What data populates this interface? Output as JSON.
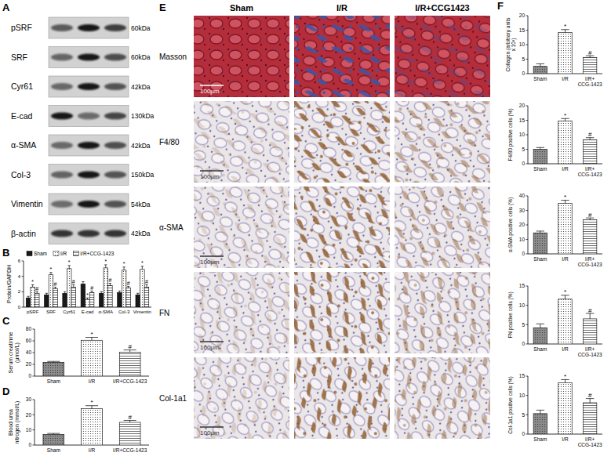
{
  "figure": {
    "panel_letters": [
      "A",
      "B",
      "C",
      "D",
      "E",
      "F"
    ],
    "blot": {
      "rows": [
        {
          "label": "pSRF",
          "size": "60kDa"
        },
        {
          "label": "SRF",
          "size": "60kDa"
        },
        {
          "label": "Cyr61",
          "size": "42kDa"
        },
        {
          "label": "E-cad",
          "size": "130kDa"
        },
        {
          "label": "α-SMA",
          "size": "42kDa"
        },
        {
          "label": "Col-3",
          "size": "150kDa"
        },
        {
          "label": "Vimentin",
          "size": "54kDa"
        },
        {
          "label": "β-actin",
          "size": "42kDa"
        }
      ]
    },
    "images": {
      "columns": [
        "Sham",
        "I/R",
        "I/R+CCG1423"
      ],
      "rows": [
        {
          "label": "Masson",
          "scale_bar": "100μm"
        },
        {
          "label": "F4/80",
          "scale_bar": "100μm"
        },
        {
          "label": "α-SMA",
          "scale_bar": "100μm"
        },
        {
          "label": "FN",
          "scale_bar": "100μm"
        },
        {
          "label": "Col-1a1",
          "scale_bar": "100μm"
        }
      ]
    }
  },
  "chart_data": [
    {
      "type": "bar",
      "y_label": "Protein/GAPDH",
      "categories": [
        "pSRF",
        "SRF",
        "Cyr61",
        "E-cad",
        "α-SMA",
        "Col-3",
        "Vimentin"
      ],
      "series": [
        {
          "name": "Sham",
          "color": "#1a1a1a",
          "values": [
            1.2,
            1.6,
            1.8,
            3.0,
            1.8,
            1.9,
            1.6
          ],
          "errors": [
            0.2,
            0.2,
            0.2,
            0.3,
            0.2,
            0.2,
            0.2
          ],
          "annotations": [
            null,
            null,
            null,
            null,
            null,
            null,
            null
          ]
        },
        {
          "name": "I/R",
          "color": "#ffffff",
          "values": [
            2.6,
            4.2,
            5.0,
            1.0,
            5.1,
            4.8,
            4.9
          ],
          "errors": [
            0.3,
            0.3,
            0.4,
            0.2,
            0.4,
            0.4,
            0.4
          ],
          "annotations": [
            "*",
            "*",
            "*",
            "*",
            "*",
            "*",
            "*"
          ]
        },
        {
          "name": "I/R+CCG-1423",
          "color": "#ffffff",
          "values": [
            1.8,
            2.4,
            2.6,
            1.9,
            2.8,
            2.5,
            2.6
          ],
          "errors": [
            0.2,
            0.2,
            0.3,
            0.2,
            0.3,
            0.2,
            0.3
          ],
          "annotations": [
            "#",
            "#",
            "#",
            "#",
            "#",
            "#",
            "#"
          ]
        }
      ],
      "ylim": [
        0,
        6
      ],
      "yticks": [
        0,
        2,
        4,
        6
      ],
      "legend": "top"
    },
    {
      "type": "bar",
      "y_label": "Serum creatinine (μmol/L)",
      "categories": [
        "Sham",
        "I/R",
        "I/R+CCG-1423"
      ],
      "values": [
        23.5,
        61,
        40.5
      ],
      "errors": [
        1.5,
        5,
        4
      ],
      "annotations": [
        null,
        "*",
        "#"
      ],
      "colors": [
        "#8c8c8c",
        "#ffffff",
        "#ffffff"
      ],
      "ylim": [
        0,
        80
      ],
      "yticks": [
        0,
        20,
        40,
        60,
        80
      ]
    },
    {
      "type": "bar",
      "y_label": "Blood urea nitrogen (mmol/L)",
      "categories": [
        "Sham",
        "I/R",
        "I/R+CCG-1423"
      ],
      "values": [
        7,
        24,
        15
      ],
      "errors": [
        0.7,
        2,
        1.3
      ],
      "annotations": [
        null,
        "*",
        "#"
      ],
      "colors": [
        "#8c8c8c",
        "#ffffff",
        "#ffffff"
      ],
      "ylim": [
        0,
        30
      ],
      "yticks": [
        0,
        10,
        20,
        30
      ]
    },
    {
      "type": "bar",
      "y_label": "Collagen (arbitrary units x 10³)",
      "categories": [
        "Sham",
        "I/R",
        "I/R+CCG-1423"
      ],
      "values": [
        2.5,
        14.2,
        5.6
      ],
      "errors": [
        0.9,
        1.0,
        0.6
      ],
      "annotations": [
        null,
        "*",
        "#"
      ],
      "colors": [
        "#8c8c8c",
        "#ffffff",
        "#ffffff"
      ],
      "ylim": [
        0,
        20
      ],
      "yticks": [
        0,
        5,
        10,
        15,
        20
      ]
    },
    {
      "type": "bar",
      "y_label": "F4/80 positive cells (%)",
      "categories": [
        "Sham",
        "I/R",
        "I/R+CCG-1423"
      ],
      "values": [
        5.0,
        14.8,
        8.3
      ],
      "errors": [
        0.6,
        0.8,
        0.7
      ],
      "annotations": [
        null,
        "*",
        "#"
      ],
      "colors": [
        "#8c8c8c",
        "#ffffff",
        "#ffffff"
      ],
      "ylim": [
        0,
        20
      ],
      "yticks": [
        0,
        5,
        10,
        15,
        20
      ]
    },
    {
      "type": "bar",
      "y_label": "α-SMA positive cells (%)",
      "categories": [
        "Sham",
        "I/R",
        "I/R+CCG-1423"
      ],
      "values": [
        14.5,
        34.8,
        23.5
      ],
      "errors": [
        1.2,
        2.2,
        1.3
      ],
      "annotations": [
        null,
        "*",
        "#"
      ],
      "colors": [
        "#8c8c8c",
        "#ffffff",
        "#ffffff"
      ],
      "ylim": [
        0,
        40
      ],
      "yticks": [
        0,
        10,
        20,
        30,
        40
      ]
    },
    {
      "type": "bar",
      "y_label": "FN positive cells (%)",
      "categories": [
        "Sham",
        "I/R",
        "I/R+CCG-1423"
      ],
      "values": [
        4.2,
        11.6,
        6.5
      ],
      "errors": [
        1.0,
        1.0,
        1.4
      ],
      "annotations": [
        null,
        "*",
        "#"
      ],
      "colors": [
        "#8c8c8c",
        "#ffffff",
        "#ffffff"
      ],
      "ylim": [
        0,
        15
      ],
      "yticks": [
        0,
        5,
        10,
        15
      ]
    },
    {
      "type": "bar",
      "y_label": "Col-1a1 positive cells (%)",
      "categories": [
        "Sham",
        "I/R",
        "I/R+CCG-1423"
      ],
      "values": [
        5.3,
        13.3,
        8.1
      ],
      "errors": [
        0.9,
        0.8,
        1.1
      ],
      "annotations": [
        null,
        "*",
        "#"
      ],
      "colors": [
        "#8c8c8c",
        "#ffffff",
        "#ffffff"
      ],
      "ylim": [
        0,
        15
      ],
      "yticks": [
        0,
        5,
        10,
        15
      ]
    }
  ]
}
